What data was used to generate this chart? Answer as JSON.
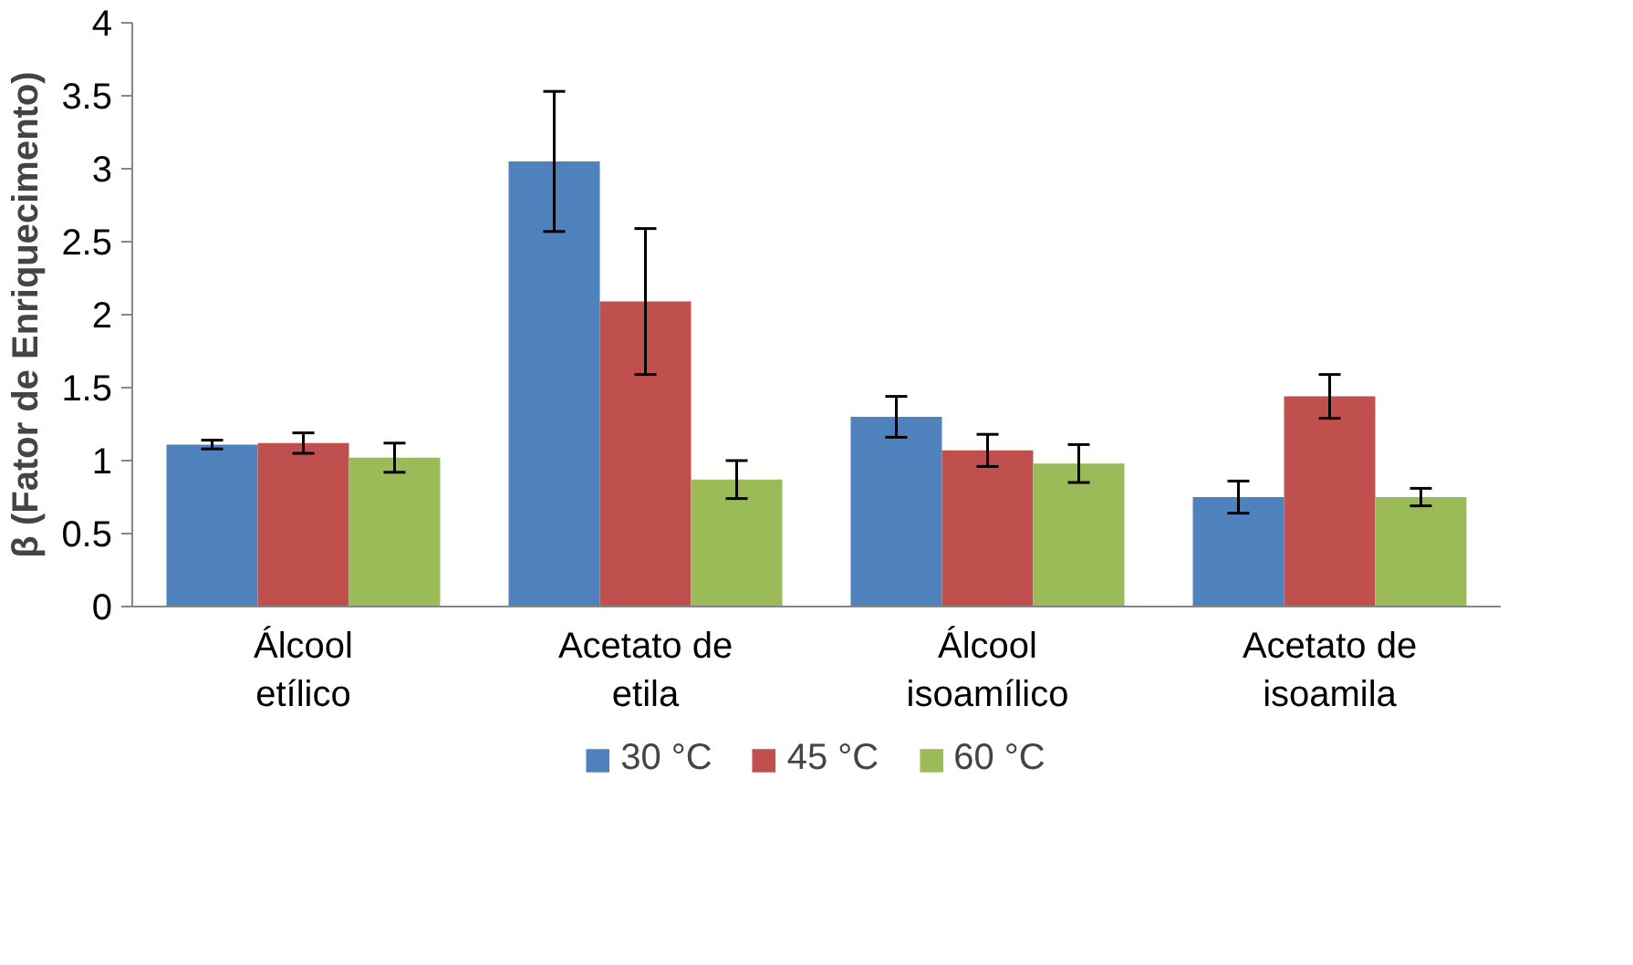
{
  "chart_data": {
    "type": "bar",
    "ylabel": "β (Fator de Enriquecimento)",
    "categories": [
      "Álcool etílico",
      "Acetato de etila",
      "Álcool isoamílico",
      "Acetato de isoamila"
    ],
    "series": [
      {
        "name": "30 °C",
        "color": "#4f81bd",
        "values": [
          1.11,
          3.05,
          1.3,
          0.75
        ],
        "errors": [
          0.03,
          0.48,
          0.14,
          0.11
        ]
      },
      {
        "name": "45 °C",
        "color": "#c0504d",
        "values": [
          1.12,
          2.09,
          1.07,
          1.44
        ],
        "errors": [
          0.07,
          0.5,
          0.11,
          0.15
        ]
      },
      {
        "name": "60 °C",
        "color": "#9bbb59",
        "values": [
          1.02,
          0.87,
          0.98,
          0.75
        ],
        "errors": [
          0.1,
          0.13,
          0.13,
          0.06
        ]
      }
    ],
    "ylim": [
      0,
      4
    ],
    "yticks": [
      0,
      0.5,
      1,
      1.5,
      2,
      2.5,
      3,
      3.5,
      4
    ],
    "grid": false,
    "legend": "bottom"
  }
}
